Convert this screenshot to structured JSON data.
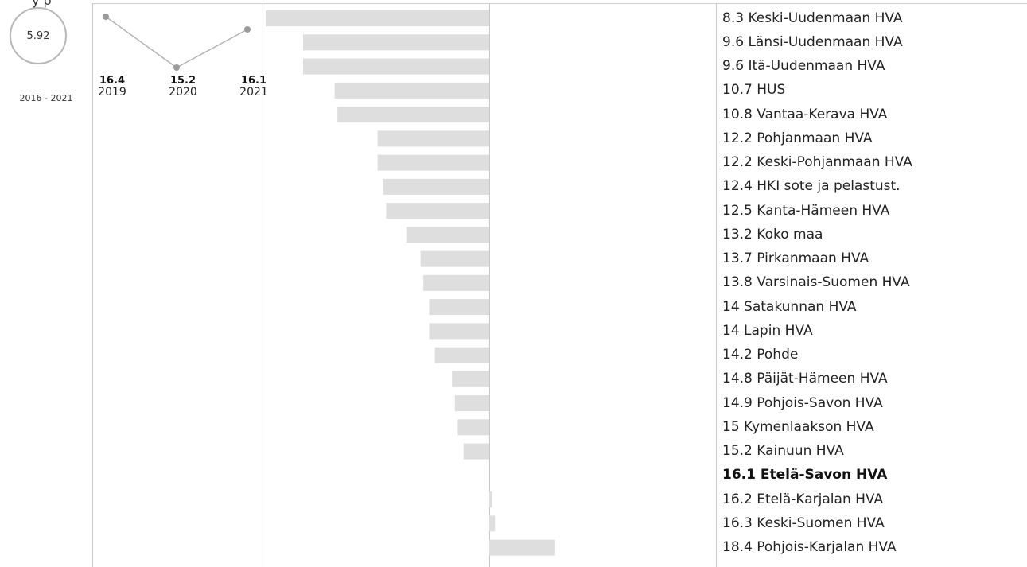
{
  "header": {
    "clipped_text": "y    p"
  },
  "index_value": "5.92",
  "range_label": "2016 - 2021",
  "trend": [
    {
      "year": "2019",
      "value": "16.4"
    },
    {
      "year": "2020",
      "value": "15.2"
    },
    {
      "year": "2021",
      "value": "16.1"
    }
  ],
  "chart_data": {
    "type": "bar",
    "orientation": "horizontal",
    "baseline": 16.1,
    "bar_color": "#dedede",
    "highlight_category": "Etelä-Savon HVA",
    "categories": [
      "Keski-Uudenmaan HVA",
      "Länsi-Uudenmaan HVA",
      "Itä-Uudenmaan HVA",
      "HUS",
      "Vantaa-Kerava HVA",
      "Pohjanmaan HVA",
      "Keski-Pohjanmaan HVA",
      "HKI sote ja pelastust.",
      "Kanta-Hämeen HVA",
      "Koko maa",
      "Pirkanmaan HVA",
      "Varsinais-Suomen HVA",
      "Satakunnan HVA",
      "Lapin HVA",
      "Pohde",
      "Päijät-Hämeen HVA",
      "Pohjois-Savon HVA",
      "Kymenlaakson HVA",
      "Kainuun HVA",
      "Etelä-Savon HVA",
      "Etelä-Karjalan HVA",
      "Keski-Suomen HVA",
      "Pohjois-Karjalan HVA"
    ],
    "values": [
      8.3,
      9.6,
      9.6,
      10.7,
      10.8,
      12.2,
      12.2,
      12.4,
      12.5,
      13.2,
      13.7,
      13.8,
      14,
      14,
      14.2,
      14.8,
      14.9,
      15,
      15.2,
      16.1,
      16.2,
      16.3,
      18.4
    ],
    "value_labels": [
      "8.3",
      "9.6",
      "9.6",
      "10.7",
      "10.8",
      "12.2",
      "12.2",
      "12.4",
      "12.5",
      "13.2",
      "13.7",
      "13.8",
      "14",
      "14",
      "14.2",
      "14.8",
      "14.9",
      "15",
      "15.2",
      "16.1",
      "16.2",
      "16.3",
      "18.4"
    ]
  }
}
